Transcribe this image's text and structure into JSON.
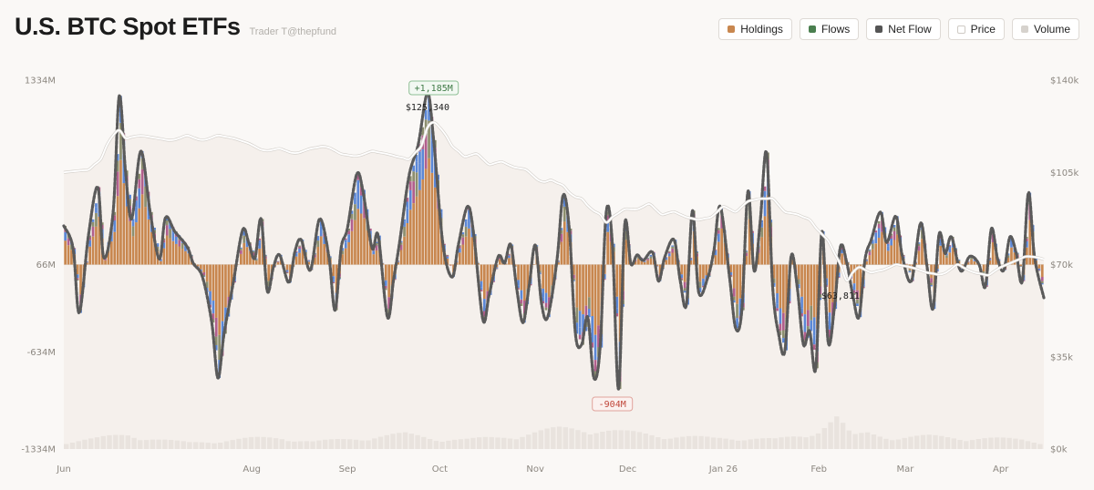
{
  "header": {
    "title": "U.S. BTC Spot ETFs",
    "subtitle": "Trader T@thepfund"
  },
  "legend": [
    {
      "label": "Holdings",
      "color": "#c8874f"
    },
    {
      "label": "Flows",
      "color": "#4a7f4f"
    },
    {
      "label": "Net Flow",
      "color": "#555555"
    },
    {
      "label": "Price",
      "color": "#ffffff"
    },
    {
      "label": "Volume",
      "color": "#d6d2cd"
    }
  ],
  "colors": {
    "flow_orange": "#c8874f",
    "flow_blue": "#5b87d6",
    "flow_pink": "#b15f8d",
    "flow_olive": "#8c8e6e",
    "net_line": "#5a5a5a",
    "price_line": "#ffffff",
    "volume": "#e3e0dc",
    "positive": "#3f7a46",
    "negative": "#c0463a"
  },
  "chart_data": {
    "type": "bar",
    "title": "U.S. BTC Spot ETFs",
    "left_axis": {
      "ticks": [
        "1334M",
        "66M",
        "-634M",
        "-1334M"
      ],
      "values": [
        1334,
        66,
        -634,
        -1334
      ]
    },
    "right_axis": {
      "ticks": [
        "$140k",
        "$105k",
        "$70k",
        "$35k",
        "$0k"
      ],
      "values": [
        140,
        105,
        70,
        35,
        0
      ]
    },
    "x_ticks": [
      "Jun",
      "Aug",
      "Sep",
      "Oct",
      "Nov",
      "Dec",
      "Jan 26",
      "Feb",
      "Mar",
      "Apr"
    ],
    "x_tick_days": [
      0,
      61,
      92,
      122,
      153,
      183,
      214,
      245,
      273,
      304
    ],
    "days": 318,
    "ylim_flow": [
      -1334,
      1334
    ],
    "ylim_price": [
      0,
      140
    ],
    "net_flow_keypoints": [
      [
        0,
        280
      ],
      [
        3,
        120
      ],
      [
        5,
        -350
      ],
      [
        8,
        210
      ],
      [
        11,
        560
      ],
      [
        13,
        50
      ],
      [
        16,
        380
      ],
      [
        18,
        1220
      ],
      [
        20,
        680
      ],
      [
        22,
        330
      ],
      [
        25,
        820
      ],
      [
        28,
        380
      ],
      [
        31,
        40
      ],
      [
        33,
        340
      ],
      [
        36,
        240
      ],
      [
        40,
        130
      ],
      [
        42,
        10
      ],
      [
        45,
        -90
      ],
      [
        48,
        -420
      ],
      [
        50,
        -820
      ],
      [
        52,
        -500
      ],
      [
        55,
        -130
      ],
      [
        58,
        250
      ],
      [
        60,
        160
      ],
      [
        62,
        45
      ],
      [
        64,
        330
      ],
      [
        66,
        -190
      ],
      [
        68,
        -20
      ],
      [
        70,
        70
      ],
      [
        73,
        -130
      ],
      [
        75,
        95
      ],
      [
        77,
        180
      ],
      [
        80,
        -40
      ],
      [
        83,
        330
      ],
      [
        86,
        60
      ],
      [
        88,
        -330
      ],
      [
        90,
        120
      ],
      [
        92,
        260
      ],
      [
        95,
        650
      ],
      [
        97,
        540
      ],
      [
        100,
        120
      ],
      [
        102,
        210
      ],
      [
        105,
        -380
      ],
      [
        107,
        -110
      ],
      [
        109,
        170
      ],
      [
        112,
        640
      ],
      [
        115,
        870
      ],
      [
        118,
        1240
      ],
      [
        120,
        900
      ],
      [
        123,
        150
      ],
      [
        126,
        -90
      ],
      [
        128,
        140
      ],
      [
        131,
        420
      ],
      [
        133,
        220
      ],
      [
        136,
        -400
      ],
      [
        138,
        -220
      ],
      [
        141,
        60
      ],
      [
        143,
        10
      ],
      [
        145,
        145
      ],
      [
        147,
        -180
      ],
      [
        149,
        -420
      ],
      [
        151,
        -150
      ],
      [
        153,
        140
      ],
      [
        155,
        -280
      ],
      [
        157,
        -380
      ],
      [
        160,
        30
      ],
      [
        162,
        500
      ],
      [
        164,
        260
      ],
      [
        166,
        -500
      ],
      [
        168,
        -580
      ],
      [
        170,
        -380
      ],
      [
        172,
        -820
      ],
      [
        174,
        -600
      ],
      [
        176,
        380
      ],
      [
        178,
        150
      ],
      [
        180,
        -900
      ],
      [
        182,
        290
      ],
      [
        184,
        5
      ],
      [
        186,
        70
      ],
      [
        188,
        30
      ],
      [
        191,
        90
      ],
      [
        193,
        -120
      ],
      [
        195,
        55
      ],
      [
        198,
        180
      ],
      [
        200,
        -115
      ],
      [
        202,
        -290
      ],
      [
        204,
        390
      ],
      [
        206,
        -200
      ],
      [
        209,
        -90
      ],
      [
        211,
        110
      ],
      [
        213,
        420
      ],
      [
        216,
        -90
      ],
      [
        218,
        -460
      ],
      [
        220,
        -330
      ],
      [
        222,
        530
      ],
      [
        224,
        -45
      ],
      [
        226,
        320
      ],
      [
        228,
        810
      ],
      [
        230,
        -160
      ],
      [
        232,
        -510
      ],
      [
        234,
        -620
      ],
      [
        236,
        60
      ],
      [
        238,
        -170
      ],
      [
        240,
        -580
      ],
      [
        242,
        -480
      ],
      [
        244,
        -750
      ],
      [
        246,
        240
      ],
      [
        248,
        -560
      ],
      [
        250,
        -320
      ],
      [
        252,
        130
      ],
      [
        254,
        20
      ],
      [
        256,
        -220
      ],
      [
        258,
        -380
      ],
      [
        260,
        40
      ],
      [
        262,
        180
      ],
      [
        265,
        380
      ],
      [
        267,
        160
      ],
      [
        270,
        350
      ],
      [
        272,
        70
      ],
      [
        275,
        -120
      ],
      [
        278,
        300
      ],
      [
        280,
        5
      ],
      [
        282,
        -320
      ],
      [
        284,
        220
      ],
      [
        286,
        80
      ],
      [
        288,
        200
      ],
      [
        291,
        -45
      ],
      [
        294,
        60
      ],
      [
        297,
        0
      ],
      [
        299,
        -160
      ],
      [
        301,
        260
      ],
      [
        303,
        40
      ],
      [
        305,
        -40
      ],
      [
        307,
        200
      ],
      [
        309,
        85
      ],
      [
        311,
        -120
      ],
      [
        313,
        520
      ],
      [
        315,
        50
      ],
      [
        318,
        -240
      ]
    ],
    "price_keypoints": [
      [
        0,
        105
      ],
      [
        8,
        106
      ],
      [
        12,
        110
      ],
      [
        15,
        118
      ],
      [
        18,
        121
      ],
      [
        20,
        118
      ],
      [
        25,
        119
      ],
      [
        30,
        118
      ],
      [
        35,
        117
      ],
      [
        40,
        119
      ],
      [
        45,
        117
      ],
      [
        50,
        119
      ],
      [
        55,
        118
      ],
      [
        60,
        116
      ],
      [
        65,
        113
      ],
      [
        70,
        114
      ],
      [
        75,
        112
      ],
      [
        80,
        114
      ],
      [
        85,
        115
      ],
      [
        90,
        112
      ],
      [
        95,
        111
      ],
      [
        100,
        113
      ],
      [
        105,
        112
      ],
      [
        108,
        111
      ],
      [
        112,
        110
      ],
      [
        116,
        115
      ],
      [
        118,
        122
      ],
      [
        120,
        124
      ],
      [
        123,
        121
      ],
      [
        126,
        115
      ],
      [
        130,
        111
      ],
      [
        134,
        112
      ],
      [
        138,
        108
      ],
      [
        142,
        109
      ],
      [
        146,
        107
      ],
      [
        150,
        106
      ],
      [
        155,
        101
      ],
      [
        158,
        102
      ],
      [
        162,
        100
      ],
      [
        165,
        96
      ],
      [
        168,
        95
      ],
      [
        171,
        91
      ],
      [
        174,
        89
      ],
      [
        176,
        86
      ],
      [
        178,
        88
      ],
      [
        182,
        91
      ],
      [
        186,
        91
      ],
      [
        190,
        93
      ],
      [
        194,
        89
      ],
      [
        198,
        90
      ],
      [
        202,
        88
      ],
      [
        206,
        87
      ],
      [
        210,
        88
      ],
      [
        214,
        92
      ],
      [
        218,
        90
      ],
      [
        222,
        94
      ],
      [
        226,
        95
      ],
      [
        230,
        95
      ],
      [
        234,
        90
      ],
      [
        238,
        89
      ],
      [
        242,
        87
      ],
      [
        244,
        84
      ],
      [
        248,
        79
      ],
      [
        252,
        70
      ],
      [
        254,
        64
      ],
      [
        256,
        67
      ],
      [
        258,
        69
      ],
      [
        262,
        67
      ],
      [
        266,
        68
      ],
      [
        270,
        70
      ],
      [
        275,
        69
      ],
      [
        280,
        67
      ],
      [
        285,
        66
      ],
      [
        290,
        70
      ],
      [
        295,
        67
      ],
      [
        300,
        66
      ],
      [
        304,
        69
      ],
      [
        308,
        71
      ],
      [
        312,
        73
      ],
      [
        315,
        73
      ],
      [
        318,
        72
      ]
    ],
    "volume_keypoints": [
      [
        0,
        7
      ],
      [
        10,
        10
      ],
      [
        20,
        14
      ],
      [
        30,
        9
      ],
      [
        40,
        6
      ],
      [
        50,
        8
      ],
      [
        60,
        10
      ],
      [
        70,
        11
      ],
      [
        80,
        7
      ],
      [
        90,
        9
      ],
      [
        100,
        12
      ],
      [
        110,
        14
      ],
      [
        120,
        10
      ],
      [
        130,
        9
      ],
      [
        140,
        11
      ],
      [
        150,
        15
      ],
      [
        160,
        19
      ],
      [
        170,
        20
      ],
      [
        180,
        16
      ],
      [
        190,
        14
      ],
      [
        200,
        12
      ],
      [
        210,
        10
      ],
      [
        220,
        11
      ],
      [
        230,
        9
      ],
      [
        240,
        13
      ],
      [
        245,
        22
      ],
      [
        250,
        30
      ],
      [
        255,
        12
      ],
      [
        260,
        15
      ],
      [
        270,
        11
      ],
      [
        280,
        12
      ],
      [
        290,
        11
      ],
      [
        300,
        10
      ],
      [
        310,
        9
      ],
      [
        318,
        6
      ]
    ],
    "volume_ylim": [
      0,
      60
    ],
    "annotations": [
      {
        "label": "+1,185M",
        "kind": "positive"
      },
      {
        "label": "-904M",
        "kind": "negative"
      },
      {
        "label": "$125,340",
        "kind": "price-high"
      },
      {
        "label": "$63,811",
        "kind": "price-low"
      }
    ]
  }
}
